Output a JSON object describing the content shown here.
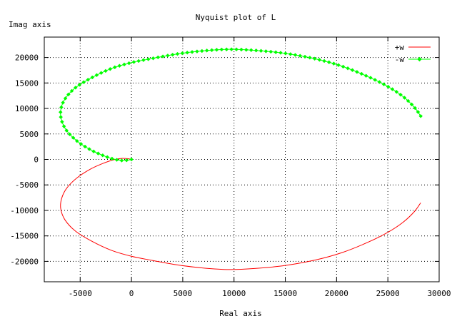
{
  "chart_data": {
    "type": "line",
    "title": "Nyquist plot of L",
    "xlabel": "Real axis",
    "ylabel": "Imag axis",
    "xlim": [
      -8500,
      30000
    ],
    "ylim": [
      -24000,
      24000
    ],
    "xticks": [
      -5000,
      0,
      5000,
      10000,
      15000,
      20000,
      25000,
      30000
    ],
    "yticks": [
      -20000,
      -15000,
      -10000,
      -5000,
      0,
      5000,
      10000,
      15000,
      20000
    ],
    "grid": true,
    "legend_position": "top-right",
    "series": [
      {
        "name": "+w",
        "color": "#ff0000",
        "marker": "none",
        "points": [
          [
            28200,
            -8500
          ],
          [
            27600,
            -10200
          ],
          [
            26500,
            -12300
          ],
          [
            25000,
            -14300
          ],
          [
            23000,
            -16300
          ],
          [
            20500,
            -18300
          ],
          [
            18000,
            -19700
          ],
          [
            15000,
            -20800
          ],
          [
            12000,
            -21400
          ],
          [
            9500,
            -21600
          ],
          [
            7000,
            -21300
          ],
          [
            4500,
            -20700
          ],
          [
            2000,
            -19800
          ],
          [
            0,
            -19000
          ],
          [
            -2000,
            -17800
          ],
          [
            -4000,
            -15900
          ],
          [
            -5500,
            -14000
          ],
          [
            -6500,
            -11800
          ],
          [
            -6900,
            -9600
          ],
          [
            -6800,
            -7600
          ],
          [
            -6300,
            -5600
          ],
          [
            -5300,
            -3600
          ],
          [
            -4000,
            -1900
          ],
          [
            -2800,
            -800
          ],
          [
            -1800,
            -100
          ],
          [
            -1000,
            200
          ],
          [
            -400,
            150
          ],
          [
            -100,
            50
          ],
          [
            0,
            0
          ]
        ]
      },
      {
        "name": "-w",
        "color": "#00ff00",
        "marker": "diamond",
        "points": [
          [
            28200,
            8500
          ],
          [
            27600,
            10200
          ],
          [
            26500,
            12300
          ],
          [
            25000,
            14300
          ],
          [
            23000,
            16300
          ],
          [
            20500,
            18300
          ],
          [
            18000,
            19700
          ],
          [
            15000,
            20800
          ],
          [
            12000,
            21400
          ],
          [
            9500,
            21600
          ],
          [
            7000,
            21300
          ],
          [
            4500,
            20700
          ],
          [
            2000,
            19800
          ],
          [
            0,
            19000
          ],
          [
            -2000,
            17800
          ],
          [
            -4000,
            15900
          ],
          [
            -5500,
            14000
          ],
          [
            -6500,
            11800
          ],
          [
            -6900,
            9600
          ],
          [
            -6800,
            7600
          ],
          [
            -6300,
            5600
          ],
          [
            -5300,
            3600
          ],
          [
            -4000,
            1900
          ],
          [
            -2800,
            800
          ],
          [
            -1800,
            100
          ],
          [
            -1000,
            -200
          ],
          [
            -400,
            -150
          ],
          [
            -100,
            -50
          ],
          [
            0,
            0
          ]
        ]
      }
    ]
  }
}
